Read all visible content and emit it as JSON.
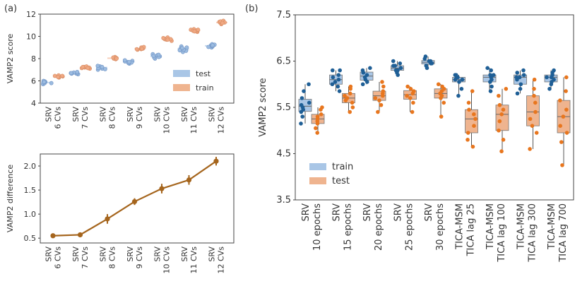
{
  "panel_labels": {
    "a": "(a)",
    "b": "(b)"
  },
  "chart_data": [
    {
      "id": "a-top",
      "type": "box-strip",
      "ylabel": "VAMP2 score",
      "ylim": [
        4,
        12
      ],
      "yticks": [
        4,
        6,
        8,
        10,
        12
      ],
      "categories": [
        {
          "line1": "SRV",
          "line2": "6 CVs"
        },
        {
          "line1": "SRV",
          "line2": "7 CVs"
        },
        {
          "line1": "SRV",
          "line2": "8 CVs"
        },
        {
          "line1": "SRV",
          "line2": "9 CVs"
        },
        {
          "line1": "SRV",
          "line2": "10 CVs"
        },
        {
          "line1": "SRV",
          "line2": "11 CVs"
        },
        {
          "line1": "SRV",
          "line2": "12 CVs"
        }
      ],
      "legend": [
        {
          "name": "test",
          "color": "#a9c6e6"
        },
        {
          "name": "train",
          "color": "#efb48f"
        }
      ],
      "series": [
        {
          "name": "test",
          "color": "#9bbbe0",
          "values": [
            [
              5.7,
              5.8,
              5.85,
              5.9,
              5.95,
              6.0,
              5.8,
              5.9
            ],
            [
              6.6,
              6.65,
              6.7,
              6.75,
              6.7,
              6.65,
              6.8,
              6.7
            ],
            [
              7.0,
              7.1,
              7.2,
              7.3,
              7.25,
              7.15,
              7.35,
              7.05
            ],
            [
              7.55,
              7.6,
              7.7,
              7.8,
              7.75,
              7.65,
              7.85,
              7.7
            ],
            [
              8.0,
              8.1,
              8.2,
              8.3,
              8.4,
              8.25,
              8.15,
              8.35
            ],
            [
              8.6,
              8.7,
              8.8,
              9.0,
              9.1,
              8.9,
              8.75,
              8.95
            ],
            [
              9.0,
              9.1,
              9.2,
              9.3,
              9.25,
              9.15,
              9.05,
              9.2
            ]
          ]
        },
        {
          "name": "train",
          "color": "#f0a882",
          "values": [
            [
              6.3,
              6.35,
              6.4,
              6.45,
              6.5,
              6.4,
              6.35,
              6.45
            ],
            [
              7.1,
              7.15,
              7.2,
              7.25,
              7.3,
              7.2,
              7.15,
              7.25
            ],
            [
              7.95,
              8.0,
              8.05,
              8.1,
              8.15,
              8.1,
              8.05,
              8.0
            ],
            [
              8.8,
              8.85,
              8.9,
              8.95,
              9.0,
              9.05,
              8.9,
              8.85
            ],
            [
              9.6,
              9.7,
              9.75,
              9.8,
              9.85,
              9.9,
              9.75,
              9.7
            ],
            [
              10.4,
              10.5,
              10.55,
              10.6,
              10.65,
              10.5,
              10.45,
              10.6
            ],
            [
              11.1,
              11.2,
              11.25,
              11.3,
              11.35,
              11.4,
              11.25,
              11.2
            ]
          ]
        }
      ]
    },
    {
      "id": "a-bottom",
      "type": "line",
      "ylabel": "VAMP2 difference",
      "ylim": [
        0.4,
        2.25
      ],
      "yticks": [
        0.5,
        1.0,
        1.5,
        2.0
      ],
      "ytick_labels": [
        "0.5",
        "1.0",
        "1.5",
        "2.0"
      ],
      "categories": [
        {
          "line1": "SRV",
          "line2": "6 CVs"
        },
        {
          "line1": "SRV",
          "line2": "7 CVs"
        },
        {
          "line1": "SRV",
          "line2": "8 CVs"
        },
        {
          "line1": "SRV",
          "line2": "9 CVs"
        },
        {
          "line1": "SRV",
          "line2": "10 CVs"
        },
        {
          "line1": "SRV",
          "line2": "11 CVs"
        },
        {
          "line1": "SRV",
          "line2": "12 CVs"
        }
      ],
      "values": [
        0.55,
        0.57,
        0.9,
        1.26,
        1.53,
        1.71,
        2.1
      ],
      "errors": [
        0.04,
        0.05,
        0.1,
        0.07,
        0.1,
        0.1,
        0.09
      ],
      "color": "#a5651d"
    },
    {
      "id": "b",
      "type": "box-strip",
      "ylabel": "VAMP2 score",
      "ylim": [
        3.5,
        7.5
      ],
      "yticks": [
        3.5,
        4.5,
        5.5,
        6.5,
        7.5
      ],
      "ytick_labels": [
        "3.5",
        "4.5",
        "5.5",
        "6.5",
        "7.5"
      ],
      "categories": [
        {
          "line1": "SRV",
          "line2": "10 epochs"
        },
        {
          "line1": "SRV",
          "line2": "15 epochs"
        },
        {
          "line1": "SRV",
          "line2": "20 epochs"
        },
        {
          "line1": "SRV",
          "line2": "25 epochs"
        },
        {
          "line1": "SRV",
          "line2": "30 epochs"
        },
        {
          "line1": "TICA-MSM",
          "line2": "TICA lag 25"
        },
        {
          "line1": "TICA-MSM",
          "line2": "TICA lag 100"
        },
        {
          "line1": "TICA-MSM",
          "line2": "TICA lag 300"
        },
        {
          "line1": "TICA-MSM",
          "line2": "TICA lag 700"
        }
      ],
      "legend": [
        {
          "name": "train",
          "color": "#a9c6e6"
        },
        {
          "name": "test",
          "color": "#efb48f"
        }
      ],
      "series": [
        {
          "name": "train",
          "color": "#1f5f96",
          "box": "#a9c6e6",
          "values": [
            [
              5.15,
              5.3,
              5.4,
              5.45,
              5.5,
              5.55,
              5.6,
              5.7,
              5.85,
              6.0
            ],
            [
              5.85,
              5.95,
              6.0,
              6.05,
              6.1,
              6.15,
              6.2,
              6.3,
              6.3
            ],
            [
              6.0,
              6.05,
              6.1,
              6.15,
              6.2,
              6.25,
              6.3,
              6.35
            ],
            [
              6.2,
              6.25,
              6.3,
              6.35,
              6.4,
              6.45,
              6.5,
              6.3,
              6.4
            ],
            [
              6.35,
              6.4,
              6.45,
              6.5,
              6.55,
              6.6,
              6.45,
              6.5
            ],
            [
              5.75,
              5.9,
              6.05,
              6.1,
              6.15,
              6.2,
              6.1,
              6.15,
              6.2
            ],
            [
              5.85,
              5.95,
              6.05,
              6.15,
              6.2,
              6.3,
              6.35,
              6.1,
              6.2
            ],
            [
              5.8,
              5.9,
              6.0,
              6.1,
              6.15,
              6.2,
              6.25,
              6.15,
              6.3
            ],
            [
              5.9,
              6.0,
              6.05,
              6.1,
              6.15,
              6.2,
              6.25,
              6.3,
              6.15
            ]
          ]
        },
        {
          "name": "test",
          "color": "#e8761e",
          "box": "#efb48f",
          "values": [
            [
              4.95,
              5.05,
              5.15,
              5.2,
              5.25,
              5.3,
              5.35,
              5.45,
              5.5
            ],
            [
              5.4,
              5.5,
              5.6,
              5.65,
              5.7,
              5.75,
              5.8,
              5.9,
              5.95
            ],
            [
              5.4,
              5.55,
              5.65,
              5.7,
              5.75,
              5.8,
              5.85,
              5.95,
              6.05
            ],
            [
              5.4,
              5.6,
              5.7,
              5.75,
              5.8,
              5.85,
              5.9,
              5.95
            ],
            [
              5.3,
              5.6,
              5.7,
              5.75,
              5.8,
              5.85,
              5.9,
              5.95,
              6.0
            ],
            [
              4.65,
              4.8,
              4.95,
              5.1,
              5.25,
              5.35,
              5.45,
              5.6,
              5.85
            ],
            [
              4.55,
              4.8,
              5.0,
              5.2,
              5.35,
              5.45,
              5.55,
              5.75,
              5.9
            ],
            [
              4.6,
              4.95,
              5.1,
              5.25,
              5.4,
              5.6,
              5.75,
              5.9,
              6.1
            ],
            [
              4.25,
              4.75,
              4.95,
              5.1,
              5.3,
              5.45,
              5.65,
              5.85,
              6.15
            ]
          ]
        }
      ]
    }
  ]
}
